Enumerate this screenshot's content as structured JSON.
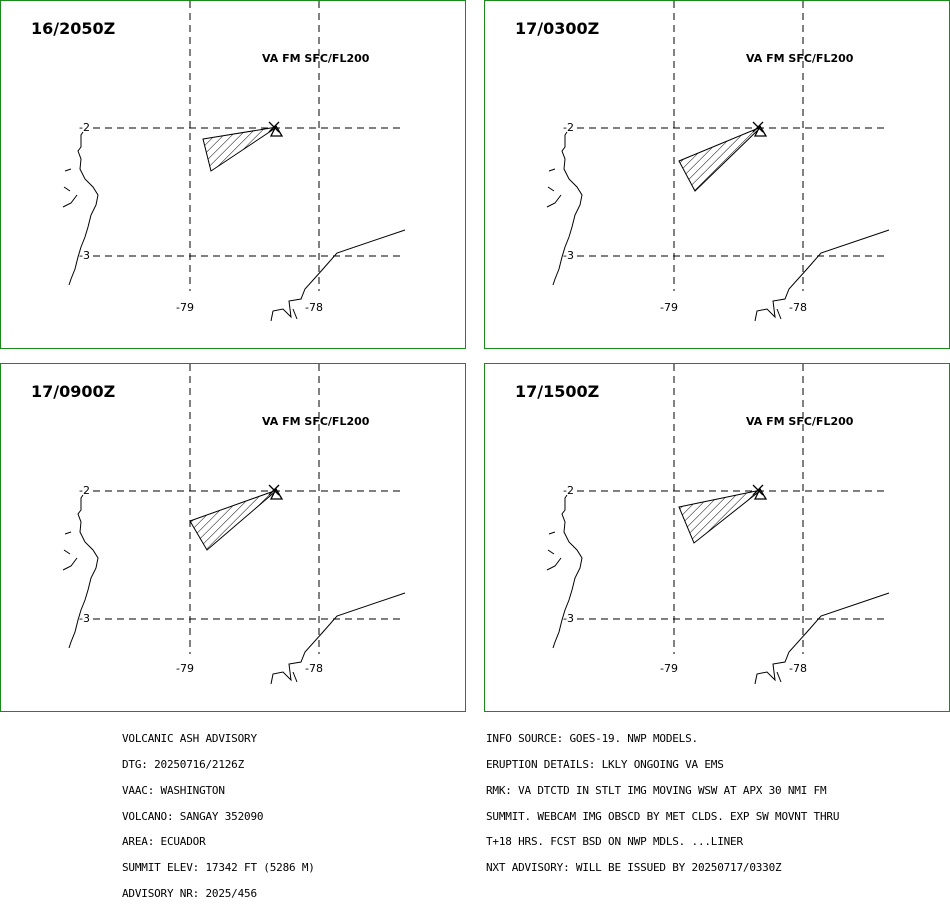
{
  "panels": [
    {
      "time": "16/2050Z",
      "level": "VA FM SFC/FL200",
      "ticks": {
        "lat_top": "-2",
        "lat_bottom": "-3",
        "lon_left": "-79",
        "lon_right": "-78"
      }
    },
    {
      "time": "17/0300Z",
      "level": "VA FM SFC/FL200",
      "ticks": {
        "lat_top": "-2",
        "lat_bottom": "-3",
        "lon_left": "-79",
        "lon_right": "-78"
      }
    },
    {
      "time": "17/0900Z",
      "level": "VA FM SFC/FL200",
      "ticks": {
        "lat_top": "-2",
        "lat_bottom": "-3",
        "lon_left": "-79",
        "lon_right": "-78"
      }
    },
    {
      "time": "17/1500Z",
      "level": "VA FM SFC/FL200",
      "ticks": {
        "lat_top": "-2",
        "lat_bottom": "-3",
        "lon_left": "-79",
        "lon_right": "-78"
      }
    }
  ],
  "advisory_left": [
    "VOLCANIC ASH ADVISORY",
    "DTG: 20250716/2126Z",
    "VAAC: WASHINGTON",
    "VOLCANO: SANGAY 352090",
    "AREA: ECUADOR",
    "SUMMIT ELEV: 17342 FT (5286 M)",
    "ADVISORY NR: 2025/456"
  ],
  "advisory_right": [
    "INFO SOURCE: GOES-19. NWP MODELS.",
    "ERUPTION DETAILS: LKLY ONGOING VA EMS",
    "RMK: VA DTCTD IN STLT IMG MOVING WSW AT APX 30 NMI FM",
    "SUMMIT. WEBCAM IMG OBSCD BY MET CLDS. EXP SW MOVNT THRU",
    "T+18 HRS. FCST BSD ON NWP MDLS. ...LINER",
    "NXT ADVISORY: WILL BE ISSUED BY 20250717/0330Z"
  ],
  "colors": {
    "panel_border": "#1a8a1a",
    "lines": "#000000"
  }
}
